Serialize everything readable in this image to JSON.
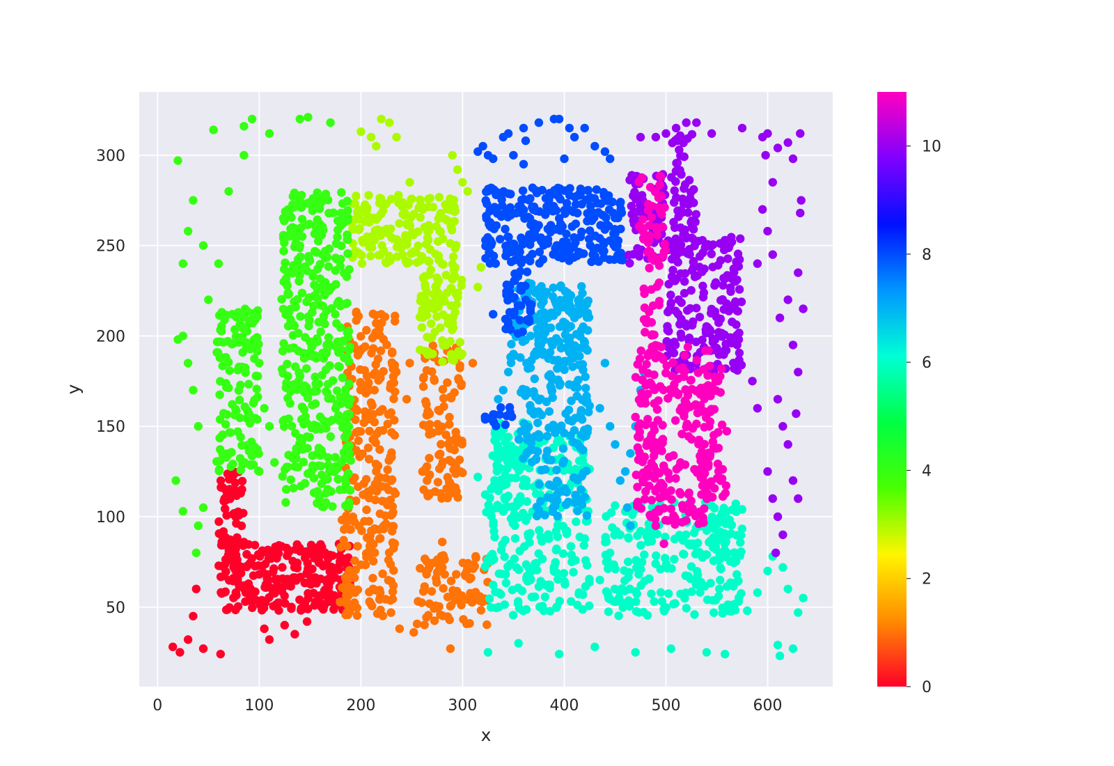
{
  "chart_data": {
    "type": "scatter",
    "title": "",
    "xlabel": "x",
    "ylabel": "y",
    "xlim": [
      -18,
      664
    ],
    "ylim": [
      6,
      335
    ],
    "xticks": [
      0,
      100,
      200,
      300,
      400,
      500,
      600
    ],
    "yticks": [
      50,
      100,
      150,
      200,
      250,
      300
    ],
    "grid": true,
    "background": "#EAEAF2",
    "colorbar": {
      "min": 0,
      "max": 11,
      "ticks": [
        0,
        2,
        4,
        6,
        8,
        10
      ],
      "colormap": "gist_rainbow_r",
      "colormap_stops": [
        "#FF0029",
        "#FF8C00",
        "#FFF500",
        "#49FF00",
        "#00FF43",
        "#00FFD5",
        "#0095FF",
        "#0010FF",
        "#8000FF",
        "#FF00BF"
      ]
    },
    "point_count_note": "dense clusters; each cluster described by region and color value",
    "clusters": [
      {
        "label": 0,
        "regions": [
          [
            60,
            48,
            85,
            125
          ],
          [
            85,
            48,
            190,
            85
          ]
        ],
        "points": 320,
        "scatter": [
          [
            15,
            28
          ],
          [
            22,
            25
          ],
          [
            30,
            32
          ],
          [
            35,
            45
          ],
          [
            38,
            60
          ],
          [
            105,
            38
          ],
          [
            110,
            32
          ],
          [
            125,
            40
          ],
          [
            135,
            35
          ],
          [
            45,
            27
          ],
          [
            62,
            24
          ],
          [
            108,
            68
          ],
          [
            147,
            42
          ]
        ]
      },
      {
        "label": 1,
        "regions": [
          [
            185,
            45,
            235,
            218
          ],
          [
            260,
            110,
            300,
            195
          ],
          [
            255,
            40,
            325,
            82
          ],
          [
            178,
            45,
            190,
            100
          ]
        ],
        "points": 480,
        "scatter": [
          [
            220,
            212
          ],
          [
            248,
            185
          ],
          [
            245,
            165
          ],
          [
            238,
            38
          ],
          [
            252,
            36
          ],
          [
            288,
            27
          ],
          [
            310,
            185
          ],
          [
            280,
            86
          ],
          [
            265,
            120
          ]
        ]
      },
      {
        "label": 3,
        "regions": [
          [
            190,
            240,
            295,
            278
          ],
          [
            258,
            185,
            300,
            240
          ]
        ],
        "points": 260,
        "scatter": [
          [
            200,
            313
          ],
          [
            210,
            310
          ],
          [
            215,
            305
          ],
          [
            220,
            320
          ],
          [
            228,
            318
          ],
          [
            235,
            310
          ],
          [
            290,
            300
          ],
          [
            295,
            292
          ],
          [
            300,
            285
          ],
          [
            305,
            280
          ],
          [
            318,
            238
          ],
          [
            315,
            227
          ],
          [
            248,
            285
          ]
        ]
      },
      {
        "label": 4,
        "regions": [
          [
            58,
            125,
            100,
            215
          ],
          [
            122,
            105,
            190,
            280
          ]
        ],
        "points": 540,
        "scatter": [
          [
            20,
            297
          ],
          [
            55,
            314
          ],
          [
            85,
            316
          ],
          [
            93,
            320
          ],
          [
            110,
            312
          ],
          [
            140,
            320
          ],
          [
            148,
            321
          ],
          [
            170,
            318
          ],
          [
            85,
            300
          ],
          [
            70,
            280
          ],
          [
            20,
            198
          ],
          [
            25,
            200
          ],
          [
            30,
            185
          ],
          [
            35,
            170
          ],
          [
            40,
            150
          ],
          [
            30,
            258
          ],
          [
            35,
            275
          ],
          [
            45,
            250
          ],
          [
            50,
            220
          ],
          [
            60,
            240
          ],
          [
            25,
            240
          ],
          [
            100,
            125
          ],
          [
            45,
            105
          ],
          [
            40,
            95
          ],
          [
            38,
            80
          ],
          [
            18,
            120
          ],
          [
            25,
            103
          ],
          [
            100,
            185
          ],
          [
            105,
            160
          ],
          [
            110,
            150
          ],
          [
            115,
            130
          ]
        ]
      },
      {
        "label": 6,
        "regions": [
          [
            322,
            45,
            425,
            145
          ],
          [
            330,
            95,
            365,
            155
          ],
          [
            440,
            45,
            575,
            108
          ],
          [
            540,
            75,
            575,
            110
          ]
        ],
        "points": 560,
        "scatter": [
          [
            355,
            30
          ],
          [
            395,
            24
          ],
          [
            430,
            28
          ],
          [
            470,
            25
          ],
          [
            505,
            27
          ],
          [
            540,
            25
          ],
          [
            558,
            24
          ],
          [
            610,
            29
          ],
          [
            612,
            23
          ],
          [
            625,
            27
          ],
          [
            630,
            47
          ],
          [
            635,
            55
          ],
          [
            600,
            70
          ],
          [
            605,
            78
          ],
          [
            615,
            72
          ],
          [
            620,
            60
          ],
          [
            590,
            58
          ],
          [
            580,
            48
          ],
          [
            435,
            65
          ],
          [
            445,
            80
          ],
          [
            455,
            90
          ],
          [
            465,
            95
          ],
          [
            475,
            92
          ],
          [
            490,
            96
          ],
          [
            325,
            25
          ],
          [
            315,
            122
          ]
        ]
      },
      {
        "label": 7,
        "regions": [
          [
            345,
            185,
            425,
            230
          ],
          [
            372,
            100,
            425,
            225
          ],
          [
            355,
            130,
            375,
            185
          ]
        ],
        "points": 340,
        "scatter": [
          [
            350,
            190
          ],
          [
            345,
            180
          ],
          [
            340,
            170
          ],
          [
            335,
            165
          ],
          [
            445,
            150
          ],
          [
            450,
            140
          ],
          [
            460,
            125
          ],
          [
            465,
            135
          ],
          [
            470,
            150
          ],
          [
            475,
            170
          ],
          [
            478,
            180
          ],
          [
            462,
            105
          ],
          [
            465,
            95
          ],
          [
            455,
            120
          ],
          [
            440,
            185
          ],
          [
            435,
            160
          ]
        ]
      },
      {
        "label": 8,
        "regions": [
          [
            322,
            240,
            458,
            282
          ],
          [
            342,
            200,
            368,
            236
          ],
          [
            322,
            150,
            350,
            162
          ]
        ],
        "points": 340,
        "scatter": [
          [
            315,
            302
          ],
          [
            320,
            305
          ],
          [
            325,
            300
          ],
          [
            330,
            298
          ],
          [
            340,
            310
          ],
          [
            345,
            312
          ],
          [
            360,
            315
          ],
          [
            362,
            308
          ],
          [
            375,
            318
          ],
          [
            390,
            320
          ],
          [
            395,
            320
          ],
          [
            405,
            315
          ],
          [
            410,
            310
          ],
          [
            420,
            315
          ],
          [
            430,
            305
          ],
          [
            440,
            302
          ],
          [
            445,
            298
          ],
          [
            350,
            300
          ],
          [
            360,
            295
          ],
          [
            400,
            298
          ],
          [
            330,
            212
          ]
        ]
      },
      {
        "label": 10,
        "regions": [
          [
            460,
            240,
            500,
            290
          ],
          [
            500,
            180,
            575,
            255
          ],
          [
            505,
            255,
            530,
            312
          ]
        ],
        "points": 330,
        "scatter": [
          [
            475,
            310
          ],
          [
            490,
            310
          ],
          [
            500,
            312
          ],
          [
            510,
            315
          ],
          [
            520,
            318
          ],
          [
            530,
            318
          ],
          [
            545,
            312
          ],
          [
            575,
            315
          ],
          [
            595,
            310
          ],
          [
            600,
            312
          ],
          [
            610,
            304
          ],
          [
            620,
            307
          ],
          [
            625,
            298
          ],
          [
            632,
            312
          ],
          [
            633,
            275
          ],
          [
            632,
            268
          ],
          [
            630,
            235
          ],
          [
            635,
            215
          ],
          [
            600,
            258
          ],
          [
            605,
            245
          ],
          [
            612,
            210
          ],
          [
            620,
            220
          ],
          [
            625,
            195
          ],
          [
            630,
            180
          ],
          [
            628,
            157
          ],
          [
            620,
            140
          ],
          [
            625,
            120
          ],
          [
            630,
            110
          ],
          [
            610,
            165
          ],
          [
            615,
            150
          ],
          [
            600,
            125
          ],
          [
            605,
            110
          ],
          [
            610,
            100
          ],
          [
            615,
            90
          ],
          [
            608,
            80
          ],
          [
            598,
            300
          ],
          [
            605,
            285
          ],
          [
            590,
            240
          ],
          [
            595,
            270
          ],
          [
            585,
            175
          ],
          [
            590,
            160
          ]
        ]
      },
      {
        "label": 11,
        "regions": [
          [
            470,
            95,
            545,
            195
          ],
          [
            530,
            110,
            560,
            185
          ],
          [
            470,
            240,
            500,
            290
          ],
          [
            478,
            170,
            495,
            240
          ]
        ],
        "points": 360,
        "scatter": [
          [
            480,
            114
          ],
          [
            485,
            100
          ],
          [
            490,
            95
          ],
          [
            498,
            85
          ]
        ]
      }
    ]
  }
}
